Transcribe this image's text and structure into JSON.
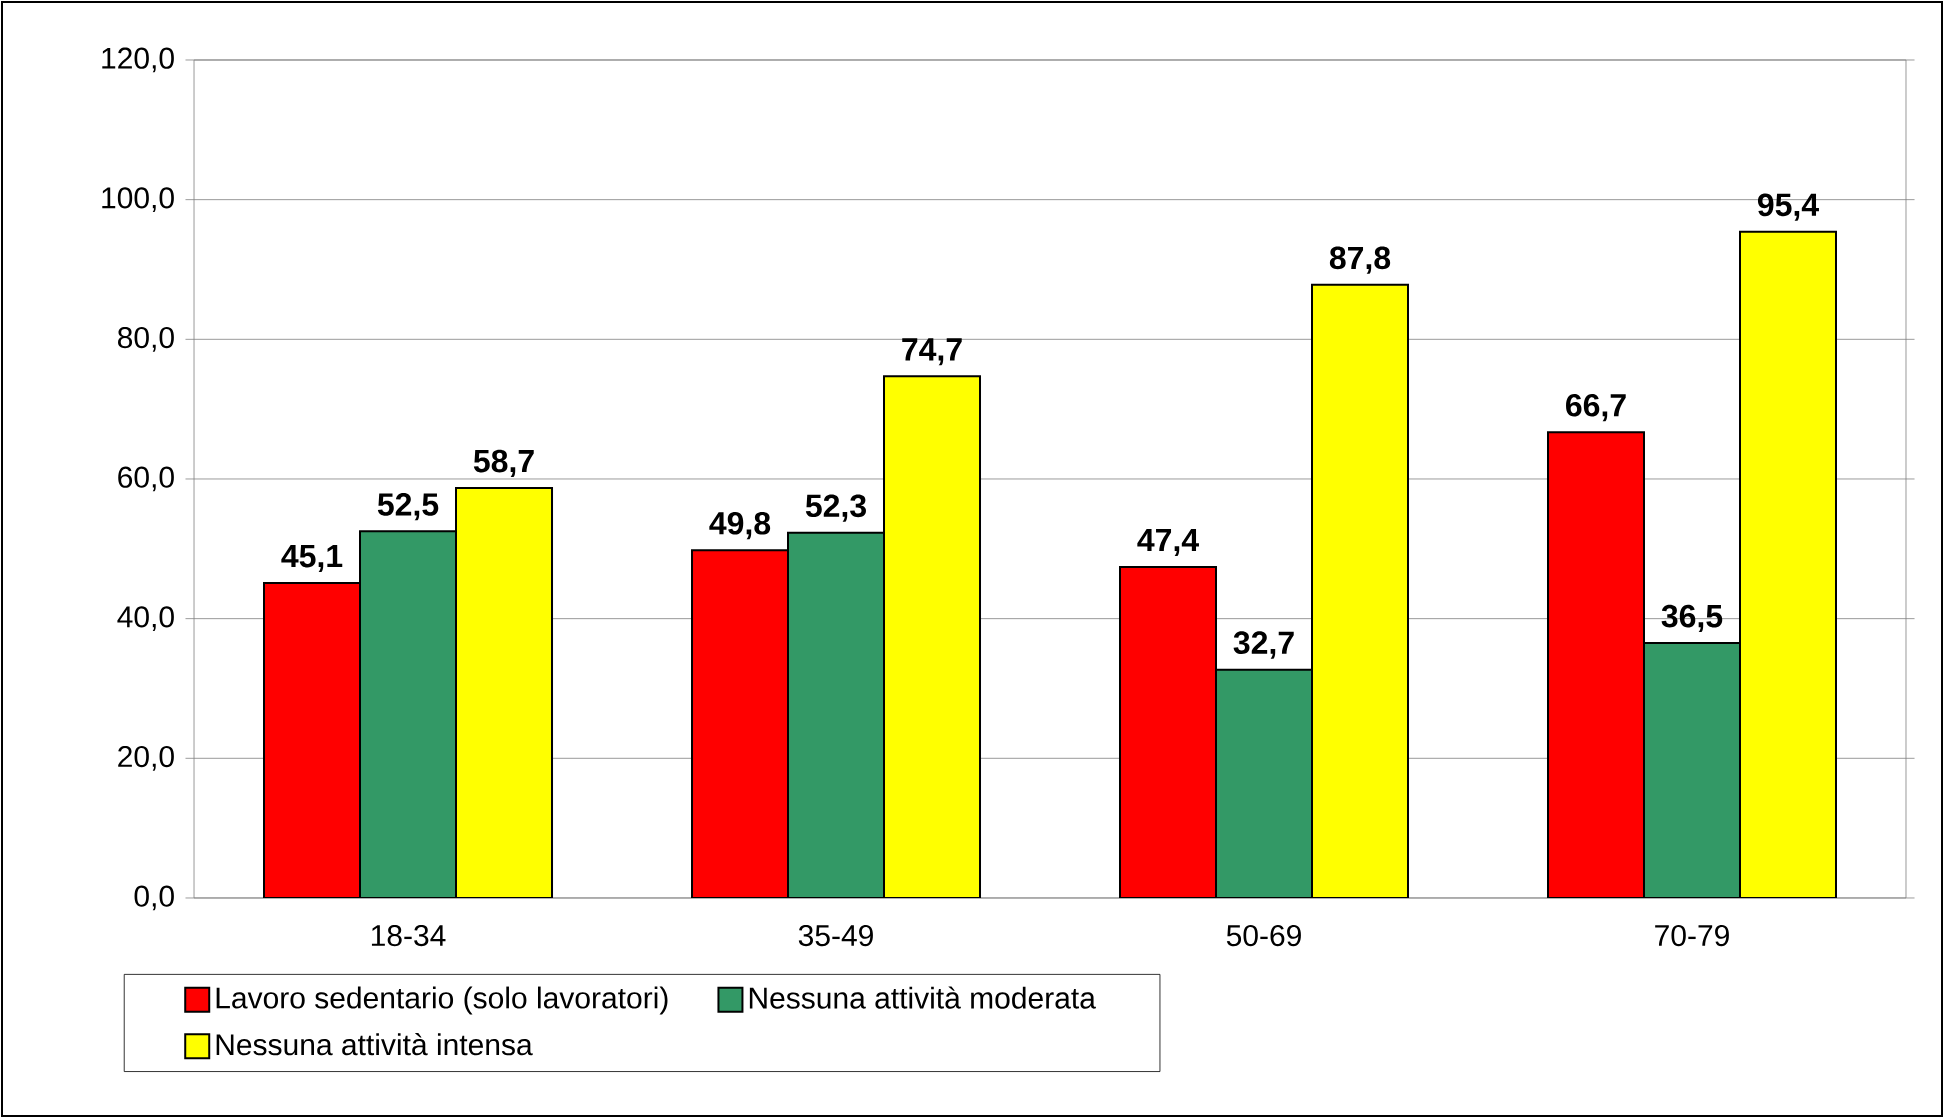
{
  "chart_data": {
    "type": "bar",
    "categories": [
      "18-34",
      "35-49",
      "50-69",
      "70-79"
    ],
    "series": [
      {
        "name": "Lavoro sedentario (solo lavoratori)",
        "color": "#ff0000",
        "values": [
          45.1,
          49.8,
          47.4,
          66.7
        ],
        "value_labels": [
          "45,1",
          "49,8",
          "47,4",
          "66,7"
        ]
      },
      {
        "name": "Nessuna attività moderata",
        "color": "#339966",
        "values": [
          52.5,
          52.3,
          32.7,
          36.5
        ],
        "value_labels": [
          "52,5",
          "52,3",
          "32,7",
          "36,5"
        ]
      },
      {
        "name": "Nessuna attività intensa",
        "color": "#ffff00",
        "values": [
          58.7,
          74.7,
          87.8,
          95.4
        ],
        "value_labels": [
          "58,7",
          "74,7",
          "87,8",
          "95,4"
        ]
      }
    ],
    "ylim": [
      0,
      120
    ],
    "yticks": [
      {
        "value": 0,
        "label": "0,0"
      },
      {
        "value": 20,
        "label": "20,0"
      },
      {
        "value": 40,
        "label": "40,0"
      },
      {
        "value": 60,
        "label": "60,0"
      },
      {
        "value": 80,
        "label": "80,0"
      },
      {
        "value": 100,
        "label": "100,0"
      },
      {
        "value": 120,
        "label": "120,0"
      }
    ],
    "grid": "y",
    "legend": "bottom"
  }
}
